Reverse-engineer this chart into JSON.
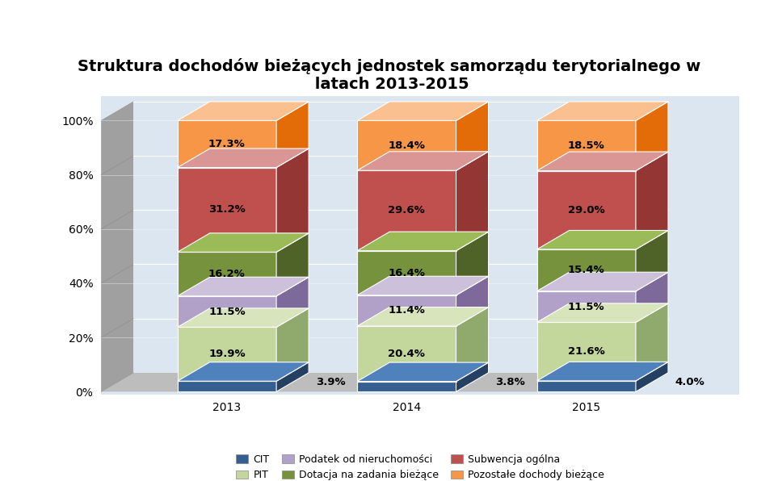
{
  "title": "Struktura dochodów bieżących jednostek samorządu terytorialnego w\n latach 2013-2015",
  "years": [
    "2013",
    "2014",
    "2015"
  ],
  "categories": [
    "CIT",
    "PIT",
    "Podatek od nieruchomości",
    "Dotacja na zadania bieżące",
    "Subwencja ogólna",
    "Pozostałe dochody bieżące"
  ],
  "values": [
    [
      3.9,
      19.9,
      11.5,
      16.2,
      31.2,
      17.3
    ],
    [
      3.8,
      20.4,
      11.4,
      16.4,
      29.6,
      18.4
    ],
    [
      4.0,
      21.6,
      11.5,
      15.4,
      29.0,
      18.5
    ]
  ],
  "colors": [
    "#365f91",
    "#c3d69b",
    "#b1a0c7",
    "#76923c",
    "#c0504d",
    "#f79646"
  ],
  "top_colors": [
    "#4f81bd",
    "#d8e4bc",
    "#ccc0da",
    "#9bbb59",
    "#d99694",
    "#fac08f"
  ],
  "right_colors": [
    "#244062",
    "#8faa6c",
    "#7d6a9a",
    "#4f6228",
    "#943634",
    "#e36c09"
  ],
  "bar_width": 0.55,
  "depth_x": 0.18,
  "depth_y": 7.0,
  "background_color": "#dce6f1",
  "wall_color": "#a6a6a6",
  "floor_color": "#bfbfbf",
  "ylim": [
    0,
    100
  ],
  "yticks": [
    0,
    20,
    40,
    60,
    80,
    100
  ],
  "ytick_labels": [
    "0%",
    "20%",
    "40%",
    "60%",
    "80%",
    "100%"
  ],
  "legend_labels": [
    "CIT",
    "PIT",
    "Podatek od nieruchomości",
    "Dotacja na zadania bieżące",
    "Subwencja ogólna",
    "Pozostałe dochody bieżące"
  ],
  "title_fontsize": 14,
  "label_fontsize": 9.5,
  "tick_fontsize": 10,
  "legend_fontsize": 9,
  "x_positions": [
    0,
    1,
    2
  ],
  "xlim_left": -0.7,
  "xlim_right": 2.85
}
